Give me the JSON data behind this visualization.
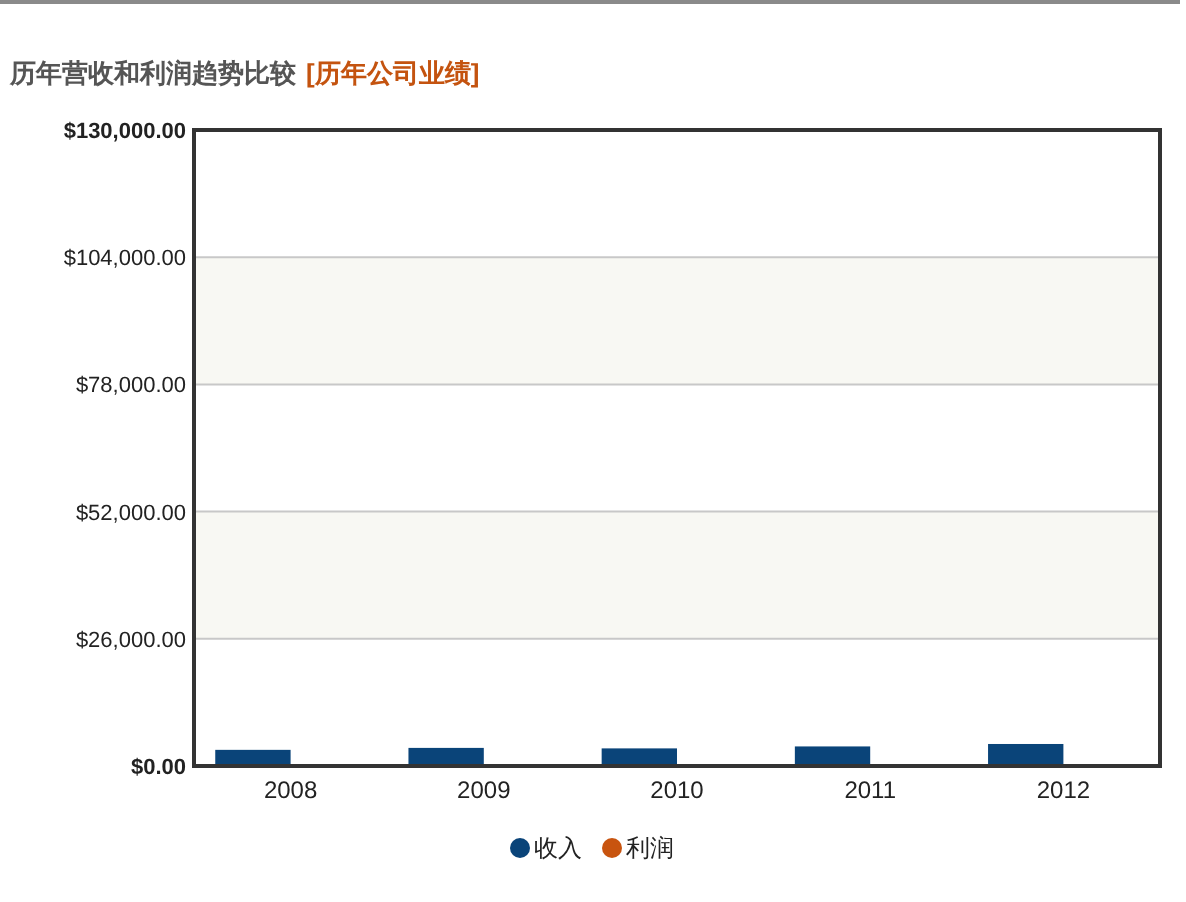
{
  "chart_data": {
    "type": "bar",
    "title": "历年营收和利润趋势比较",
    "subtitle": "[历年公司业绩]",
    "categories": [
      "2008",
      "2009",
      "2010",
      "2011",
      "2012"
    ],
    "series": [
      {
        "name": "收入",
        "color": "#0a4479",
        "values": [
          3300,
          3700,
          3600,
          4000,
          4500
        ]
      },
      {
        "name": "利润",
        "color": "#c8540f",
        "values": [
          null,
          null,
          null,
          null,
          null
        ]
      }
    ],
    "ylim": [
      0,
      130000
    ],
    "yticks": [
      {
        "value": 0,
        "label": "$0.00"
      },
      {
        "value": 26000,
        "label": "$26,000.00"
      },
      {
        "value": 52000,
        "label": "$52,000.00"
      },
      {
        "value": 78000,
        "label": "$78,000.00"
      },
      {
        "value": 104000,
        "label": "$104,000.00"
      },
      {
        "value": 130000,
        "label": "$130,000.00"
      }
    ],
    "grid": "y",
    "bands": [
      {
        "axis": "y",
        "from": 26000,
        "to": 52000,
        "color": "#f8f8f3"
      },
      {
        "axis": "y",
        "from": 78000,
        "to": 104000,
        "color": "#f8f8f3"
      }
    ],
    "legend": "bottom"
  }
}
